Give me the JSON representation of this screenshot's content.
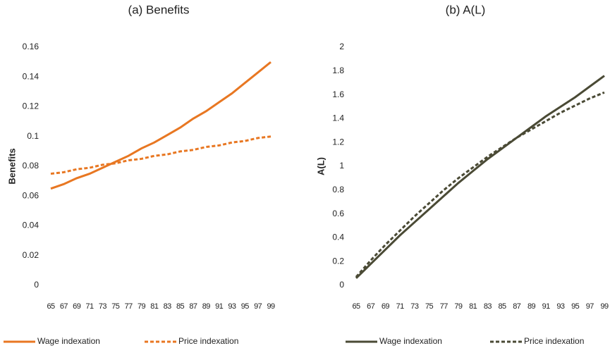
{
  "chart_data": [
    {
      "type": "line",
      "title": "(a) Benefits",
      "y_label": "Benefits",
      "categories": [
        "65",
        "67",
        "69",
        "71",
        "73",
        "75",
        "77",
        "79",
        "81",
        "83",
        "85",
        "87",
        "89",
        "91",
        "93",
        "95",
        "97",
        "99"
      ],
      "series": [
        {
          "name": "Wage indexation",
          "color": "#e87722",
          "style": "solid",
          "values": [
            0.065,
            0.068,
            0.072,
            0.075,
            0.079,
            0.083,
            0.087,
            0.092,
            0.096,
            0.101,
            0.106,
            0.112,
            0.117,
            0.123,
            0.129,
            0.136,
            0.143,
            0.15
          ]
        },
        {
          "name": "Price indexation",
          "color": "#e87722",
          "style": "dashed",
          "values": [
            0.075,
            0.076,
            0.078,
            0.079,
            0.081,
            0.082,
            0.084,
            0.085,
            0.087,
            0.088,
            0.09,
            0.091,
            0.093,
            0.094,
            0.096,
            0.097,
            0.099,
            0.1
          ]
        }
      ],
      "ylim": [
        0,
        0.16
      ],
      "yticks": [
        0,
        0.02,
        0.04,
        0.06,
        0.08,
        0.1,
        0.12,
        0.14,
        0.16
      ],
      "grid": false
    },
    {
      "type": "line",
      "title": "(b) A(L)",
      "y_label": "A(L)",
      "categories": [
        "65",
        "67",
        "69",
        "71",
        "73",
        "75",
        "77",
        "79",
        "81",
        "83",
        "85",
        "87",
        "89",
        "91",
        "93",
        "95",
        "97",
        "99"
      ],
      "series": [
        {
          "name": "Wage indexation",
          "color": "#4a4a35",
          "style": "solid",
          "values": [
            0.06,
            0.18,
            0.3,
            0.42,
            0.53,
            0.64,
            0.75,
            0.86,
            0.96,
            1.06,
            1.15,
            1.24,
            1.33,
            1.42,
            1.5,
            1.58,
            1.67,
            1.76
          ]
        },
        {
          "name": "Price indexation",
          "color": "#4a4a35",
          "style": "dashed",
          "values": [
            0.07,
            0.21,
            0.34,
            0.46,
            0.58,
            0.69,
            0.8,
            0.9,
            0.99,
            1.08,
            1.16,
            1.24,
            1.31,
            1.38,
            1.45,
            1.51,
            1.57,
            1.62
          ]
        }
      ],
      "ylim": [
        0,
        2
      ],
      "yticks": [
        0,
        0.2,
        0.4,
        0.6,
        0.8,
        1,
        1.2,
        1.4,
        1.6,
        1.8,
        2
      ],
      "grid": false
    }
  ]
}
